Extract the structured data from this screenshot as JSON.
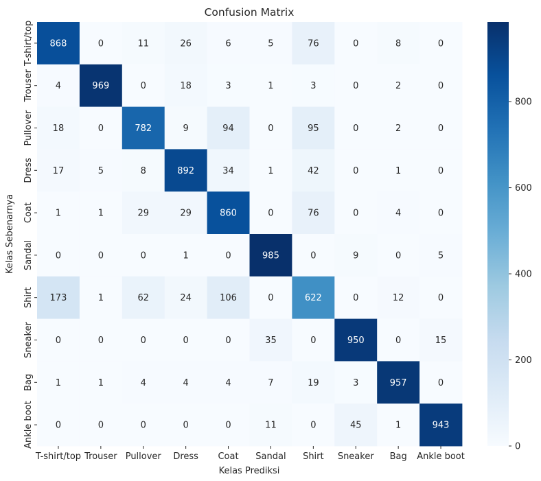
{
  "chart_data": {
    "type": "heatmap",
    "title": "Confusion Matrix",
    "xlabel": "Kelas Prediksi",
    "ylabel": "Kelas Sebenarnya",
    "x_categories": [
      "T-shirt/top",
      "Trouser",
      "Pullover",
      "Dress",
      "Coat",
      "Sandal",
      "Shirt",
      "Sneaker",
      "Bag",
      "Ankle boot"
    ],
    "y_categories": [
      "T-shirt/top",
      "Trouser",
      "Pullover",
      "Dress",
      "Coat",
      "Sandal",
      "Shirt",
      "Sneaker",
      "Bag",
      "Ankle boot"
    ],
    "values": [
      [
        868,
        0,
        11,
        26,
        6,
        5,
        76,
        0,
        8,
        0
      ],
      [
        4,
        969,
        0,
        18,
        3,
        1,
        3,
        0,
        2,
        0
      ],
      [
        18,
        0,
        782,
        9,
        94,
        0,
        95,
        0,
        2,
        0
      ],
      [
        17,
        5,
        8,
        892,
        34,
        1,
        42,
        0,
        1,
        0
      ],
      [
        1,
        1,
        29,
        29,
        860,
        0,
        76,
        0,
        4,
        0
      ],
      [
        0,
        0,
        0,
        1,
        0,
        985,
        0,
        9,
        0,
        5
      ],
      [
        173,
        1,
        62,
        24,
        106,
        0,
        622,
        0,
        12,
        0
      ],
      [
        0,
        0,
        0,
        0,
        0,
        35,
        0,
        950,
        0,
        15
      ],
      [
        1,
        1,
        4,
        4,
        4,
        7,
        19,
        3,
        957,
        0
      ],
      [
        0,
        0,
        0,
        0,
        0,
        11,
        0,
        45,
        1,
        943
      ]
    ],
    "colormap": "Blues",
    "color_range": [
      0,
      985
    ],
    "colorbar_ticks": [
      0,
      200,
      400,
      600,
      800
    ],
    "colorbar_tick_labels": [
      "0",
      "200",
      "400",
      "600",
      "800"
    ],
    "grid": false,
    "legend": "colorbar-right"
  }
}
